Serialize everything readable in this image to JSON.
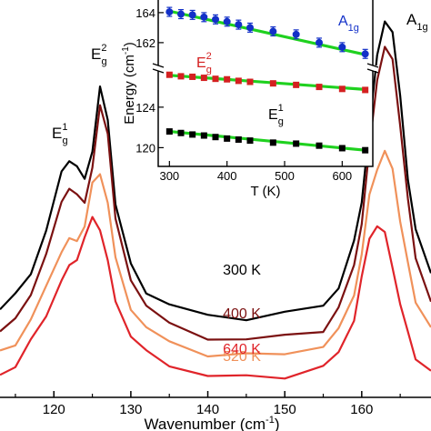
{
  "chart_data": [
    {
      "type": "line",
      "xlabel": "Wavenumber (cm-1)",
      "xlabel_main": "Wavenumber (cm",
      "xlabel_sup": "-1",
      "xlabel_end": ")",
      "xlim": [
        113,
        169
      ],
      "xticks": [
        "120",
        "130",
        "140",
        "150",
        "160"
      ],
      "yticks_visible": false,
      "peak_labels": [
        {
          "base": "E",
          "sub": "g",
          "sup": "1"
        },
        {
          "base": "E",
          "sub": "g",
          "sup": "2"
        },
        {
          "base": "A",
          "sub": "1g",
          "sup": ""
        }
      ],
      "series": [
        {
          "name": "300 K",
          "color": "#000000",
          "x": [
            113,
            115,
            117,
            119,
            121,
            122,
            123,
            124,
            125,
            126,
            127,
            128,
            130,
            132,
            135,
            140,
            145,
            150,
            155,
            157,
            159,
            160,
            161,
            162,
            163,
            164,
            165,
            166,
            167,
            169
          ],
          "y": [
            1.8,
            2.3,
            3.2,
            4.6,
            6.8,
            7.3,
            6.9,
            6.6,
            7.6,
            9.8,
            8.8,
            5.6,
            3.4,
            2.5,
            1.9,
            1.6,
            1.5,
            1.6,
            2.0,
            2.6,
            4.2,
            5.8,
            8.4,
            11.0,
            12.4,
            11.8,
            9.6,
            6.6,
            4.6,
            3.2
          ]
        },
        {
          "name": "400 K",
          "color": "#7b1111",
          "x": [
            113,
            115,
            117,
            119,
            121,
            122,
            123,
            124,
            125,
            126,
            127,
            128,
            130,
            132,
            135,
            140,
            145,
            150,
            155,
            157,
            159,
            160,
            161,
            162,
            163,
            164,
            165,
            166,
            167,
            169
          ],
          "y": [
            0.9,
            1.5,
            2.4,
            3.7,
            5.8,
            6.2,
            5.9,
            5.8,
            6.9,
            9.2,
            8.3,
            5.0,
            2.9,
            2.0,
            1.2,
            0.8,
            0.7,
            0.8,
            1.1,
            1.8,
            3.4,
            5.0,
            7.6,
            10.2,
            11.4,
            10.8,
            8.6,
            5.8,
            3.6,
            2.2
          ]
        },
        {
          "name": "520 K",
          "color": "#f0915a",
          "x": [
            113,
            115,
            117,
            119,
            121,
            122,
            123,
            124,
            125,
            126,
            127,
            128,
            130,
            132,
            135,
            140,
            145,
            150,
            155,
            157,
            159,
            160,
            161,
            162,
            163,
            164,
            165,
            166,
            167,
            169
          ],
          "y": [
            0.2,
            0.6,
            1.4,
            2.6,
            4.0,
            4.3,
            4.3,
            4.9,
            6.3,
            6.8,
            5.7,
            3.6,
            1.9,
            1.1,
            0.6,
            0.2,
            0.1,
            0.2,
            0.5,
            1.0,
            2.4,
            3.8,
            5.9,
            7.0,
            7.5,
            6.9,
            5.1,
            3.4,
            2.1,
            1.2
          ]
        },
        {
          "name": "640 K",
          "color": "#e0242a",
          "x": [
            113,
            115,
            117,
            119,
            121,
            122,
            123,
            124,
            125,
            126,
            127,
            128,
            130,
            132,
            135,
            140,
            145,
            150,
            155,
            157,
            159,
            160,
            161,
            162,
            163,
            164,
            165,
            166,
            167,
            169
          ],
          "y": [
            -0.6,
            -0.2,
            0.6,
            1.6,
            2.9,
            3.3,
            3.7,
            4.4,
            5.1,
            4.8,
            3.5,
            2.1,
            0.9,
            0.2,
            -0.2,
            -0.6,
            -0.7,
            -0.6,
            -0.3,
            0.2,
            1.5,
            2.9,
            4.4,
            4.9,
            4.5,
            3.4,
            2.0,
            0.9,
            0.1,
            -0.5
          ]
        }
      ]
    },
    {
      "type": "scatter",
      "xlabel": "T (K)",
      "ylabel": "Energy (cm-1)",
      "ylabel_main": "Energy (cm",
      "ylabel_sup": "-1",
      "ylabel_end": ")",
      "xlim": [
        290,
        650
      ],
      "xticks": [
        "300",
        "400",
        "500",
        "600"
      ],
      "ylim_upper": [
        160.6,
        164.6
      ],
      "yticks_upper": [
        "162",
        "164"
      ],
      "ylim_lower": [
        118.6,
        127.4
      ],
      "yticks_lower": [
        "120",
        "124"
      ],
      "series": [
        {
          "name": "A1g",
          "base": "A",
          "sub": "1g",
          "sup": "",
          "color": "#1230c8",
          "marker": "circle",
          "x": [
            300,
            320,
            340,
            360,
            380,
            400,
            420,
            440,
            480,
            520,
            560,
            600,
            640
          ],
          "y": [
            164.05,
            163.9,
            163.85,
            163.7,
            163.55,
            163.4,
            163.2,
            163.0,
            162.75,
            162.55,
            162.0,
            161.7,
            161.25
          ],
          "err": 0.3,
          "fit": [
            [
              300,
              164.1
            ],
            [
              640,
              161.2
            ]
          ]
        },
        {
          "name": "Eg2",
          "base": "E",
          "sub": "g",
          "sup": "2",
          "color": "#d42020",
          "marker": "square",
          "x": [
            300,
            320,
            340,
            360,
            380,
            400,
            420,
            440,
            480,
            520,
            560,
            600,
            640
          ],
          "y": [
            127.2,
            127.05,
            127.0,
            126.9,
            126.8,
            126.75,
            126.6,
            126.5,
            126.35,
            126.2,
            126.0,
            125.8,
            125.7
          ],
          "err": 0.3,
          "fit": [
            [
              300,
              127.15
            ],
            [
              640,
              125.75
            ]
          ]
        },
        {
          "name": "Eg1",
          "base": "E",
          "sub": "g",
          "sup": "1",
          "color": "#000000",
          "marker": "square",
          "x": [
            300,
            320,
            340,
            360,
            380,
            400,
            420,
            440,
            480,
            520,
            560,
            600,
            640
          ],
          "y": [
            121.6,
            121.45,
            121.3,
            121.2,
            121.05,
            120.9,
            120.8,
            120.7,
            120.5,
            120.4,
            120.2,
            119.95,
            119.75
          ],
          "err": 0.3,
          "fit": [
            [
              300,
              121.6
            ],
            [
              640,
              119.75
            ]
          ]
        }
      ]
    }
  ]
}
